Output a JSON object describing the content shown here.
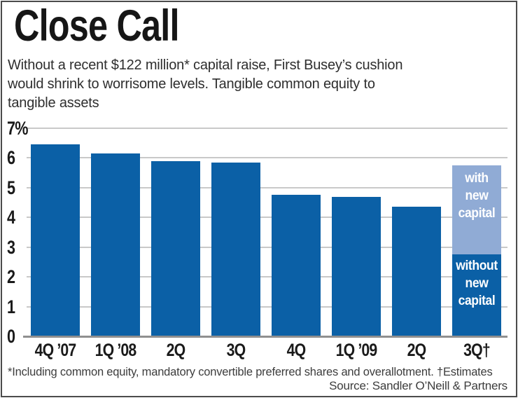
{
  "header": {
    "title": "Close Call",
    "subtitle_lines": [
      "Without a recent $122 million* capital raise, First Busey’s cushion",
      "would shrink to worrisome levels. Tangible common equity to",
      "tangible assets"
    ]
  },
  "chart_data": {
    "type": "bar",
    "title": "Close Call",
    "subtitle": "Without a recent $122 million* capital raise, First Busey’s cushion would shrink to worrisome levels. Tangible common equity to tangible assets",
    "unit": "%",
    "ylim": [
      0,
      7
    ],
    "ytick_labels": [
      "7%",
      "6",
      "5",
      "4",
      "3",
      "2",
      "1",
      "0"
    ],
    "grid": true,
    "legend_position": "in-bar",
    "categories": [
      "4Q ’07",
      "1Q ’08",
      "2Q",
      "3Q",
      "4Q",
      "1Q ’09",
      "2Q",
      "3Q†"
    ],
    "values": [
      6.45,
      6.15,
      5.9,
      5.85,
      4.75,
      4.7,
      4.35,
      null
    ],
    "final_bar": {
      "category": "3Q†",
      "segments": [
        {
          "label": "without new capital",
          "from": 0,
          "to": 2.75,
          "color_key": "dark_blue"
        },
        {
          "label": "with new capital",
          "from": 2.75,
          "to": 5.75,
          "color_key": "light_blue"
        }
      ]
    },
    "colors": {
      "dark_blue": "#0b60a6",
      "light_blue": "#90abd5",
      "gridline": "#c9c9c9",
      "baseline": "#8f8f8f"
    }
  },
  "footer": {
    "footnote": "*Including common equity, mandatory convertible preferred shares and overallotment. †Estimates",
    "source": "Source: Sandler O’Neill & Partners"
  }
}
